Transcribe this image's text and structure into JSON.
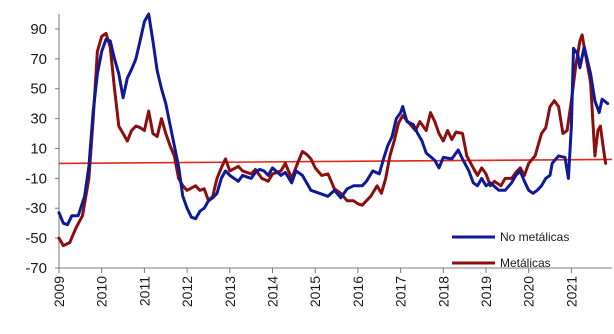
{
  "chart_data": {
    "type": "line",
    "title": "",
    "xlabel": "",
    "ylabel": "",
    "xlim": [
      2009,
      2021.85
    ],
    "ylim": [
      -70,
      100
    ],
    "y_ticks": [
      90,
      70,
      50,
      30,
      10,
      -10,
      -30,
      -50,
      -70
    ],
    "x_ticks": [
      "2009",
      "2010",
      "2011",
      "2012",
      "2013",
      "2014",
      "2015",
      "2016",
      "2017",
      "2018",
      "2019",
      "2020",
      "2021"
    ],
    "grid": false,
    "legend_position": "bottom-right",
    "reference_line": {
      "y": 0,
      "color": "#e32619"
    },
    "series": [
      {
        "name": "No metálicas",
        "color": "#0f1a96",
        "points": [
          [
            2009.0,
            -33
          ],
          [
            2009.1,
            -40
          ],
          [
            2009.2,
            -41
          ],
          [
            2009.3,
            -35
          ],
          [
            2009.45,
            -35
          ],
          [
            2009.6,
            -22
          ],
          [
            2009.7,
            -2
          ],
          [
            2009.8,
            35
          ],
          [
            2009.9,
            60
          ],
          [
            2010.0,
            75
          ],
          [
            2010.1,
            83
          ],
          [
            2010.2,
            82
          ],
          [
            2010.3,
            70
          ],
          [
            2010.4,
            60
          ],
          [
            2010.5,
            44
          ],
          [
            2010.6,
            57
          ],
          [
            2010.7,
            63
          ],
          [
            2010.8,
            70
          ],
          [
            2010.9,
            82
          ],
          [
            2011.0,
            95
          ],
          [
            2011.1,
            100
          ],
          [
            2011.2,
            82
          ],
          [
            2011.3,
            62
          ],
          [
            2011.4,
            50
          ],
          [
            2011.5,
            40
          ],
          [
            2011.6,
            26
          ],
          [
            2011.7,
            12
          ],
          [
            2011.8,
            -2
          ],
          [
            2011.9,
            -22
          ],
          [
            2012.0,
            -30
          ],
          [
            2012.1,
            -36
          ],
          [
            2012.2,
            -37
          ],
          [
            2012.3,
            -32
          ],
          [
            2012.4,
            -30
          ],
          [
            2012.5,
            -25
          ],
          [
            2012.6,
            -23
          ],
          [
            2012.7,
            -20
          ],
          [
            2012.8,
            -10
          ],
          [
            2012.9,
            -5
          ],
          [
            2013.0,
            -8
          ],
          [
            2013.2,
            -12
          ],
          [
            2013.3,
            -8
          ],
          [
            2013.5,
            -10
          ],
          [
            2013.6,
            -6
          ],
          [
            2013.7,
            -4
          ],
          [
            2013.8,
            -5
          ],
          [
            2013.9,
            -8
          ],
          [
            2014.0,
            -3
          ],
          [
            2014.2,
            -8
          ],
          [
            2014.3,
            -6
          ],
          [
            2014.45,
            -13
          ],
          [
            2014.55,
            -5
          ],
          [
            2014.7,
            -8
          ],
          [
            2014.9,
            -18
          ],
          [
            2015.1,
            -20
          ],
          [
            2015.3,
            -22
          ],
          [
            2015.45,
            -18
          ],
          [
            2015.6,
            -23
          ],
          [
            2015.75,
            -17
          ],
          [
            2015.9,
            -15
          ],
          [
            2016.1,
            -15
          ],
          [
            2016.2,
            -12
          ],
          [
            2016.35,
            -5
          ],
          [
            2016.5,
            -7
          ],
          [
            2016.6,
            3
          ],
          [
            2016.7,
            12
          ],
          [
            2016.8,
            18
          ],
          [
            2016.9,
            30
          ],
          [
            2017.0,
            34
          ],
          [
            2017.05,
            38
          ],
          [
            2017.15,
            28
          ],
          [
            2017.3,
            26
          ],
          [
            2017.4,
            20
          ],
          [
            2017.5,
            15
          ],
          [
            2017.6,
            7
          ],
          [
            2017.8,
            2
          ],
          [
            2017.9,
            -3
          ],
          [
            2018.0,
            4
          ],
          [
            2018.2,
            3
          ],
          [
            2018.35,
            9
          ],
          [
            2018.45,
            3
          ],
          [
            2018.6,
            -5
          ],
          [
            2018.7,
            -13
          ],
          [
            2018.8,
            -15
          ],
          [
            2018.9,
            -10
          ],
          [
            2019.0,
            -15
          ],
          [
            2019.1,
            -13
          ],
          [
            2019.3,
            -18
          ],
          [
            2019.45,
            -18
          ],
          [
            2019.6,
            -13
          ],
          [
            2019.7,
            -8
          ],
          [
            2019.8,
            -5
          ],
          [
            2019.9,
            -12
          ],
          [
            2020.0,
            -18
          ],
          [
            2020.1,
            -20
          ],
          [
            2020.2,
            -18
          ],
          [
            2020.3,
            -15
          ],
          [
            2020.4,
            -10
          ],
          [
            2020.5,
            -8
          ],
          [
            2020.55,
            0
          ],
          [
            2020.7,
            5
          ],
          [
            2020.85,
            4
          ],
          [
            2020.93,
            -10
          ],
          [
            2021.0,
            25
          ],
          [
            2021.05,
            77
          ],
          [
            2021.15,
            73
          ],
          [
            2021.2,
            64
          ],
          [
            2021.3,
            78
          ],
          [
            2021.45,
            60
          ],
          [
            2021.55,
            42
          ],
          [
            2021.65,
            34
          ],
          [
            2021.72,
            43
          ],
          [
            2021.85,
            40
          ]
        ]
      },
      {
        "name": "Metálicas",
        "color": "#8b0f0f",
        "points": [
          [
            2009.0,
            -50
          ],
          [
            2009.1,
            -55
          ],
          [
            2009.25,
            -53
          ],
          [
            2009.4,
            -43
          ],
          [
            2009.55,
            -35
          ],
          [
            2009.7,
            -10
          ],
          [
            2009.8,
            30
          ],
          [
            2009.9,
            75
          ],
          [
            2010.0,
            85
          ],
          [
            2010.1,
            87
          ],
          [
            2010.2,
            78
          ],
          [
            2010.3,
            50
          ],
          [
            2010.4,
            25
          ],
          [
            2010.5,
            20
          ],
          [
            2010.6,
            15
          ],
          [
            2010.7,
            22
          ],
          [
            2010.8,
            25
          ],
          [
            2010.9,
            24
          ],
          [
            2011.0,
            22
          ],
          [
            2011.1,
            35
          ],
          [
            2011.2,
            20
          ],
          [
            2011.3,
            18
          ],
          [
            2011.4,
            30
          ],
          [
            2011.5,
            20
          ],
          [
            2011.6,
            12
          ],
          [
            2011.7,
            5
          ],
          [
            2011.8,
            -10
          ],
          [
            2011.9,
            -15
          ],
          [
            2012.0,
            -18
          ],
          [
            2012.2,
            -15
          ],
          [
            2012.3,
            -18
          ],
          [
            2012.4,
            -17
          ],
          [
            2012.5,
            -25
          ],
          [
            2012.6,
            -22
          ],
          [
            2012.7,
            -10
          ],
          [
            2012.8,
            -3
          ],
          [
            2012.9,
            3
          ],
          [
            2013.0,
            -5
          ],
          [
            2013.2,
            -2
          ],
          [
            2013.3,
            -5
          ],
          [
            2013.5,
            -7
          ],
          [
            2013.6,
            -4
          ],
          [
            2013.75,
            -10
          ],
          [
            2013.9,
            -12
          ],
          [
            2014.0,
            -7
          ],
          [
            2014.2,
            -5
          ],
          [
            2014.3,
            0
          ],
          [
            2014.45,
            -10
          ],
          [
            2014.6,
            1
          ],
          [
            2014.7,
            8
          ],
          [
            2014.8,
            6
          ],
          [
            2014.9,
            3
          ],
          [
            2015.0,
            -3
          ],
          [
            2015.15,
            -8
          ],
          [
            2015.3,
            -7
          ],
          [
            2015.45,
            -17
          ],
          [
            2015.6,
            -20
          ],
          [
            2015.75,
            -25
          ],
          [
            2015.9,
            -25
          ],
          [
            2016.0,
            -27
          ],
          [
            2016.1,
            -28
          ],
          [
            2016.2,
            -25
          ],
          [
            2016.3,
            -22
          ],
          [
            2016.45,
            -15
          ],
          [
            2016.55,
            -20
          ],
          [
            2016.65,
            -10
          ],
          [
            2016.75,
            5
          ],
          [
            2016.85,
            15
          ],
          [
            2016.95,
            27
          ],
          [
            2017.05,
            32
          ],
          [
            2017.2,
            27
          ],
          [
            2017.35,
            22
          ],
          [
            2017.45,
            28
          ],
          [
            2017.6,
            22
          ],
          [
            2017.7,
            34
          ],
          [
            2017.8,
            28
          ],
          [
            2017.9,
            20
          ],
          [
            2018.0,
            15
          ],
          [
            2018.1,
            22
          ],
          [
            2018.2,
            16
          ],
          [
            2018.3,
            21
          ],
          [
            2018.45,
            20
          ],
          [
            2018.55,
            5
          ],
          [
            2018.7,
            -3
          ],
          [
            2018.8,
            -8
          ],
          [
            2018.9,
            -3
          ],
          [
            2019.0,
            -7
          ],
          [
            2019.1,
            -15
          ],
          [
            2019.2,
            -12
          ],
          [
            2019.35,
            -15
          ],
          [
            2019.45,
            -10
          ],
          [
            2019.6,
            -10
          ],
          [
            2019.7,
            -6
          ],
          [
            2019.8,
            -3
          ],
          [
            2019.9,
            -8
          ],
          [
            2020.0,
            0
          ],
          [
            2020.15,
            5
          ],
          [
            2020.3,
            20
          ],
          [
            2020.4,
            24
          ],
          [
            2020.5,
            38
          ],
          [
            2020.6,
            42
          ],
          [
            2020.7,
            38
          ],
          [
            2020.8,
            20
          ],
          [
            2020.9,
            22
          ],
          [
            2021.0,
            42
          ],
          [
            2021.1,
            65
          ],
          [
            2021.2,
            82
          ],
          [
            2021.25,
            86
          ],
          [
            2021.35,
            70
          ],
          [
            2021.45,
            54
          ],
          [
            2021.55,
            5
          ],
          [
            2021.62,
            22
          ],
          [
            2021.68,
            25
          ],
          [
            2021.75,
            10
          ],
          [
            2021.8,
            0
          ]
        ]
      }
    ]
  }
}
